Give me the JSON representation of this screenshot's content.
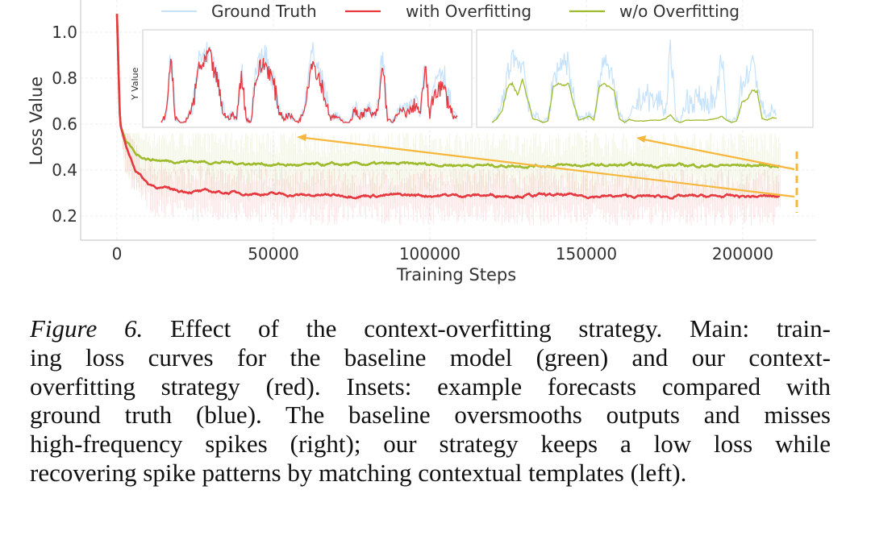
{
  "chart_data": {
    "type": "line",
    "xlabel": "Training Steps",
    "ylabel": "Loss Value",
    "xlim": [
      -11000,
      222000
    ],
    "ylim": [
      0.1,
      1.12
    ],
    "xticks": [
      "0",
      "50000",
      "100000",
      "150000",
      "200000"
    ],
    "xtick_values": [
      0,
      50000,
      100000,
      150000,
      200000
    ],
    "yticks": [
      "0.2",
      "0.4",
      "0.6",
      "0.8",
      "1.0"
    ],
    "ytick_values": [
      0.2,
      0.4,
      0.6,
      0.8,
      1.0
    ],
    "grid": true,
    "legend": {
      "placement": "top",
      "entries": [
        "Ground Truth",
        "with Overfitting",
        "w/o Overfitting"
      ]
    },
    "colors": {
      "ground_truth": "#c6e2fa",
      "with": "#e5383f",
      "without": "#9dbb2c",
      "annotation": "#f6b73c"
    },
    "x": [
      0,
      1000,
      3000,
      6000,
      10000,
      15000,
      20000,
      30000,
      40000,
      50000,
      60000,
      80000,
      100000,
      120000,
      140000,
      160000,
      180000,
      200000,
      212000
    ],
    "series": [
      {
        "name": "with Overfitting",
        "values": [
          1.08,
          0.6,
          0.5,
          0.4,
          0.34,
          0.32,
          0.31,
          0.305,
          0.3,
          0.295,
          0.29,
          0.29,
          0.29,
          0.29,
          0.29,
          0.285,
          0.285,
          0.285,
          0.285
        ]
      },
      {
        "name": "w/o Overfitting",
        "values": [
          1.08,
          0.6,
          0.52,
          0.47,
          0.45,
          0.44,
          0.44,
          0.435,
          0.43,
          0.425,
          0.42,
          0.425,
          0.425,
          0.42,
          0.42,
          0.42,
          0.42,
          0.42,
          0.42
        ]
      }
    ],
    "marker_step": 212000,
    "insets": [
      {
        "ylabel": "Y Value",
        "ground_truth": [
          0,
          0.1,
          0.9,
          0.05,
          0,
          0,
          0.1,
          0.3,
          0.85,
          0.75,
          0.95,
          0.8,
          0.55,
          0.2,
          0.05,
          0.1,
          0.05,
          0.7,
          0.05,
          0,
          0.6,
          0.75,
          0.85,
          0.7,
          0.5,
          0.2,
          0.05,
          0.1,
          0.05,
          0,
          0.15,
          0.5,
          0.9,
          0.75,
          0.55,
          0.3,
          0.05,
          0.1,
          0.05,
          0,
          0,
          0.2,
          0.1,
          0.15,
          0.2,
          0.1,
          0.2,
          0.95,
          0.05,
          0,
          0.1,
          0.2,
          0.15,
          0.2,
          0.3,
          0.15,
          0.9,
          0.1,
          0.5,
          0.7,
          0.65,
          0.35,
          0.1,
          0.05
        ],
        "prediction": [
          0,
          0.1,
          0.85,
          0.05,
          0,
          0,
          0.1,
          0.3,
          0.75,
          0.7,
          0.9,
          0.7,
          0.5,
          0.15,
          0.05,
          0.1,
          0.05,
          0.65,
          0.05,
          0,
          0.55,
          0.7,
          0.75,
          0.65,
          0.45,
          0.15,
          0.05,
          0.1,
          0.05,
          0,
          0.1,
          0.45,
          0.8,
          0.65,
          0.5,
          0.25,
          0.05,
          0.08,
          0.03,
          0,
          0,
          0.15,
          0.08,
          0.12,
          0.15,
          0.08,
          0.15,
          0.75,
          0.05,
          0,
          0.08,
          0.15,
          0.12,
          0.15,
          0.25,
          0.1,
          0.7,
          0.08,
          0.4,
          0.45,
          0.42,
          0.25,
          0.08,
          0.05
        ]
      },
      {
        "ground_truth": [
          0,
          0.05,
          0.25,
          0.55,
          0.9,
          0.75,
          0.8,
          0.35,
          0.05,
          0.1,
          0,
          0.05,
          0.55,
          0.7,
          0.8,
          0.75,
          0.3,
          0.05,
          0.05,
          0.1,
          0.05,
          0.55,
          0.9,
          0.6,
          0.45,
          0.1,
          0,
          0.05,
          0.2,
          0.3,
          0.35,
          0.3,
          0.25,
          0.3,
          0.1,
          0.95,
          0.05,
          0,
          0.3,
          0.25,
          0.3,
          0.3,
          0.25,
          0.3,
          0.2,
          0.9,
          0.05,
          0,
          0.1,
          0.5,
          0.6,
          0.75,
          0.55,
          0.2,
          0.05,
          0.2,
          0.05
        ],
        "prediction": [
          0,
          0.05,
          0.15,
          0.45,
          0.5,
          0.35,
          0.55,
          0.3,
          0.05,
          0.03,
          0,
          0.02,
          0.45,
          0.5,
          0.48,
          0.5,
          0.25,
          0.03,
          0.05,
          0.08,
          0.03,
          0.45,
          0.5,
          0.45,
          0.4,
          0.05,
          0,
          0.04,
          0.02,
          0.02,
          0.02,
          0.03,
          0.03,
          0.03,
          0.05,
          0.1,
          0.02,
          0,
          0.03,
          0.03,
          0.03,
          0.03,
          0.03,
          0.04,
          0.05,
          0.08,
          0.03,
          0,
          0.02,
          0.25,
          0.3,
          0.4,
          0.4,
          0.05,
          0.03,
          0.06,
          0.05
        ]
      }
    ]
  },
  "caption": {
    "label": "Figure 6.",
    "lines": [
      " Effect of the context-overfitting strategy. Main: train-",
      "ing loss curves for the baseline model (green) and our context-",
      "overfitting strategy (red). Insets: example forecasts compared with",
      "ground truth (blue). The baseline oversmooths outputs and misses",
      "high-frequency spikes (right); our strategy keeps a low loss while",
      "recovering spike patterns by matching contextual templates (left)."
    ]
  }
}
